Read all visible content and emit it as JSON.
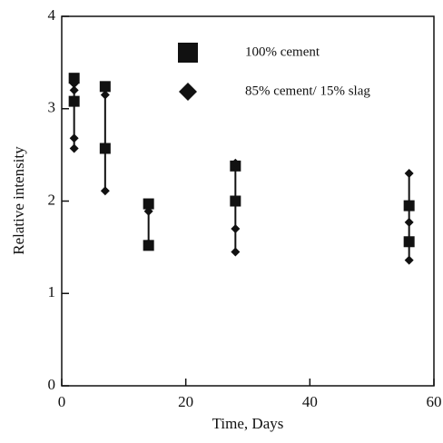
{
  "chart_data": {
    "type": "scatter",
    "x_label": "Time, Days",
    "y_label": "Relative intensity",
    "xlim": [
      0,
      60
    ],
    "ylim": [
      0,
      4
    ],
    "xticks": [
      0,
      20,
      40,
      60
    ],
    "yticks": [
      0,
      1,
      2,
      3,
      4
    ],
    "legend": "top",
    "series": [
      {
        "name": "100% cement",
        "color": "#111111",
        "marker": "square",
        "x": [
          2,
          2,
          7,
          7,
          14,
          14,
          28,
          28,
          56,
          56
        ],
        "values": [
          3.33,
          3.08,
          3.24,
          2.57,
          1.97,
          1.52,
          2.38,
          2.0,
          1.95,
          1.56
        ]
      },
      {
        "name": "85% cement/ 15% slag",
        "color": "#111111",
        "marker": "diamond",
        "x": [
          2,
          2,
          2,
          2,
          7,
          7,
          14,
          14,
          28,
          28,
          28,
          56,
          56,
          56
        ],
        "values": [
          3.27,
          3.2,
          2.68,
          2.57,
          3.15,
          2.11,
          1.89,
          1.54,
          2.41,
          1.7,
          1.45,
          2.3,
          1.77,
          1.36
        ]
      }
    ]
  }
}
